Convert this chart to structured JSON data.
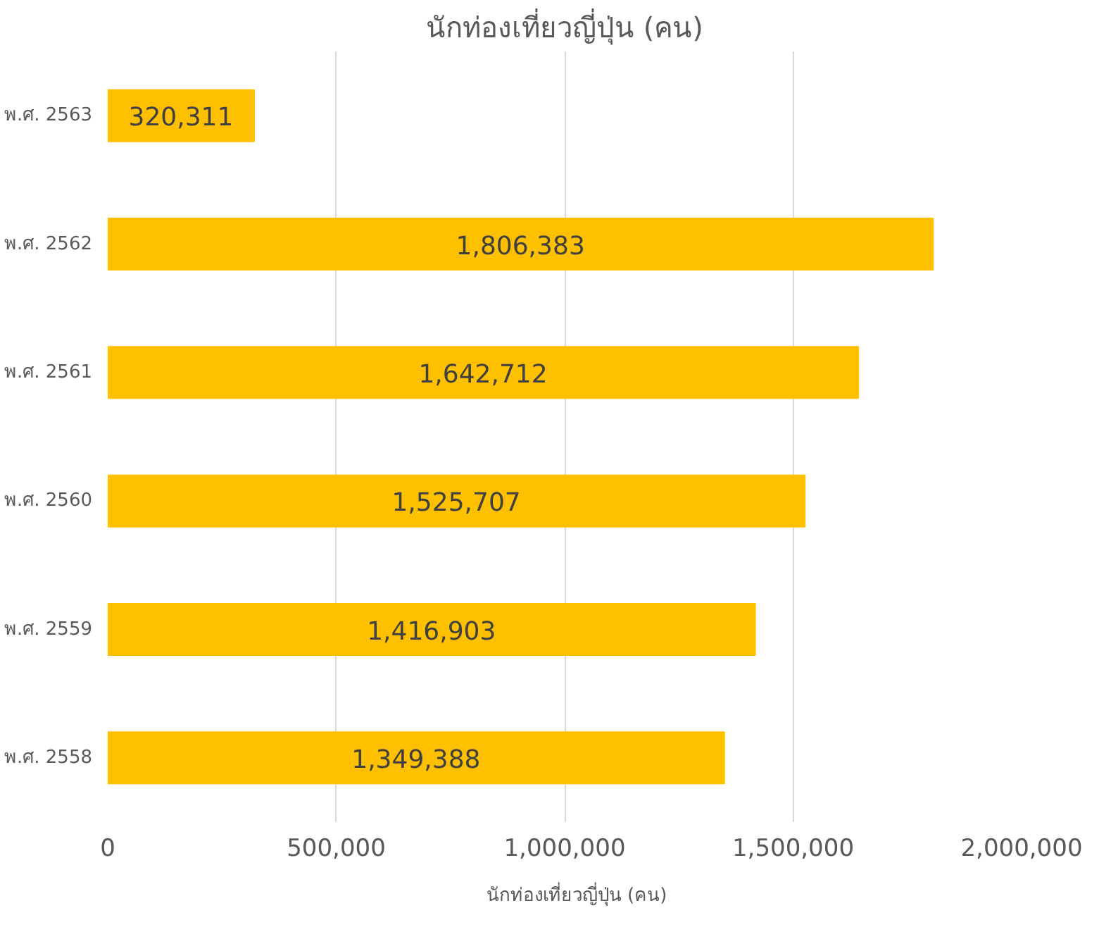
{
  "chart_data": {
    "type": "bar",
    "orientation": "horizontal",
    "title": "นักท่องเที่ยวญี่ปุ่น (คน)",
    "categories": [
      "พ.ศ. 2563",
      "พ.ศ. 2562",
      "พ.ศ. 2561",
      "พ.ศ. 2560",
      "พ.ศ. 2559",
      "พ.ศ. 2558"
    ],
    "series": [
      {
        "name": "นักท่องเที่ยวญี่ปุ่น (คน)",
        "color": "#ffc000",
        "values": [
          320311,
          1806383,
          1642712,
          1525707,
          1416903,
          1349388
        ],
        "value_labels": [
          "320,311",
          "1,806,383",
          "1,642,712",
          "1,525,707",
          "1,416,903",
          "1,349,388"
        ]
      }
    ],
    "xlim": [
      0,
      2000000
    ],
    "xticks": [
      0,
      {
        "value": 500000,
        "label": "500,000"
      },
      {
        "value": 1000000,
        "label": "1,000,000"
      },
      {
        "value": 1500000,
        "label": "1,500,000"
      },
      {
        "value": 2000000,
        "label": "2,000,000"
      }
    ],
    "grid": "x",
    "legend": "bottom"
  }
}
